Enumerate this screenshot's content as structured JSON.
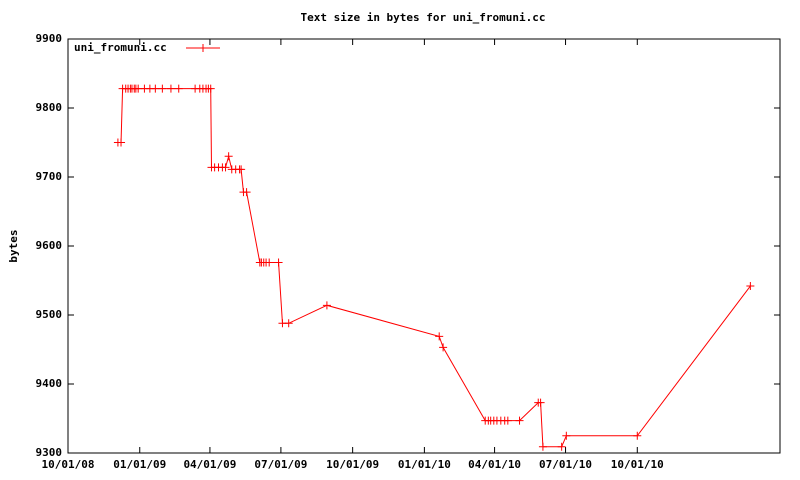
{
  "chart_data": {
    "type": "line",
    "title": "Text size in bytes for uni_fromuni.cc",
    "ylabel": "bytes",
    "x": [
      "12/04/08",
      "12/08/08",
      "12/10/08",
      "12/14/08",
      "12/17/08",
      "12/20/08",
      "12/22/08",
      "12/25/08",
      "12/27/08",
      "12/30/08",
      "01/07/09",
      "01/14/09",
      "01/21/09",
      "01/30/09",
      "02/10/09",
      "02/20/09",
      "03/13/09",
      "03/19/09",
      "03/23/09",
      "03/27/09",
      "03/30/09",
      "04/02/09",
      "04/03/09",
      "04/07/09",
      "04/12/09",
      "04/17/09",
      "04/21/09",
      "04/25/09",
      "04/29/09",
      "05/04/09",
      "05/09/09",
      "05/11/09",
      "05/14/09",
      "05/18/09",
      "06/04/09",
      "06/06/09",
      "06/09/09",
      "06/12/09",
      "06/16/09",
      "06/28/09",
      "07/03/09",
      "07/11/09",
      "08/29/09",
      "01/20/10",
      "01/25/10",
      "03/20/10",
      "03/24/10",
      "03/27/10",
      "03/31/10",
      "04/04/10",
      "04/09/10",
      "04/14/10",
      "04/18/10",
      "05/03/10",
      "05/27/10",
      "05/30/10",
      "06/02/10",
      "06/26/10",
      "07/02/10",
      "10/01/10",
      "02/23/11"
    ],
    "series": [
      {
        "name": "uni_fromuni.cc",
        "color": "#ff0000",
        "values": [
          9750,
          9750,
          9828,
          9828,
          9828,
          9828,
          9828,
          9828,
          9828,
          9828,
          9828,
          9828,
          9828,
          9828,
          9828,
          9828,
          9828,
          9828,
          9828,
          9828,
          9828,
          9828,
          9714,
          9714,
          9714,
          9714,
          9714,
          9730,
          9711,
          9711,
          9711,
          9711,
          9678,
          9678,
          9576,
          9576,
          9576,
          9576,
          9576,
          9576,
          9488,
          9488,
          9514,
          9469,
          9453,
          9347,
          9347,
          9347,
          9347,
          9347,
          9347,
          9347,
          9347,
          9347,
          9373,
          9373,
          9309,
          9309,
          9325,
          9325,
          9542
        ]
      }
    ],
    "xlim": [
      "10/01/08",
      "04/02/11"
    ],
    "xticks": [
      "10/01/08",
      "01/01/09",
      "04/01/09",
      "07/01/09",
      "10/01/09",
      "01/01/10",
      "04/01/10",
      "07/01/10",
      "10/01/10"
    ],
    "ylim": [
      9300,
      9900
    ],
    "yticks": [
      9300,
      9400,
      9500,
      9600,
      9700,
      9800,
      9900
    ],
    "legend": "top-left",
    "grid": false
  }
}
